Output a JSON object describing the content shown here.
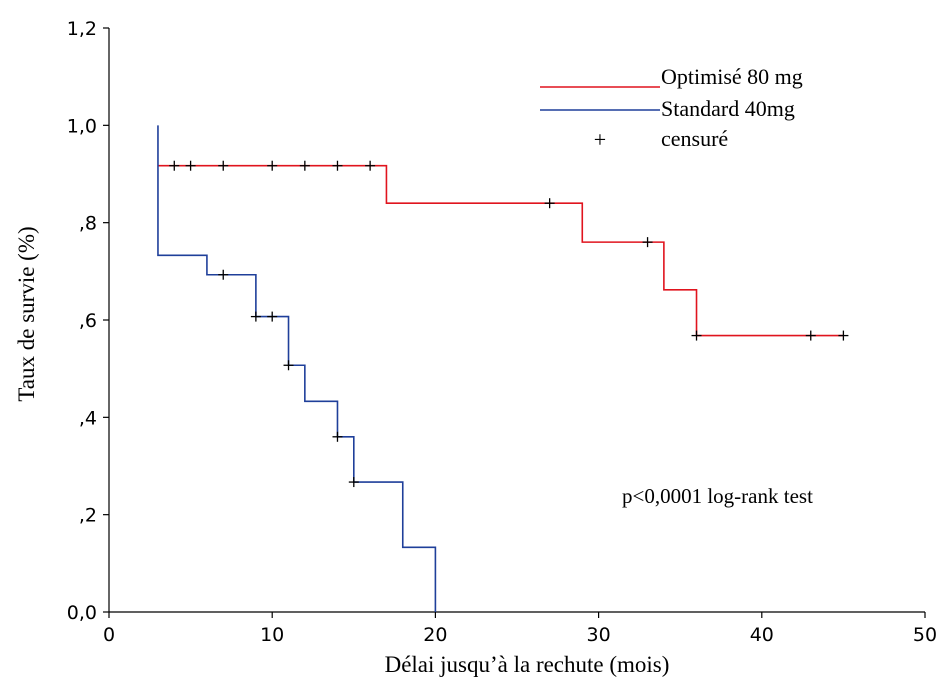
{
  "chart_data": {
    "type": "line",
    "subtype": "kaplan-meier-step",
    "xlabel": "Délai jusqu’à la rechute (mois)",
    "ylabel": "Taux de survie (%)",
    "xlim": [
      0,
      50
    ],
    "ylim": [
      0,
      1.2
    ],
    "x_ticks": [
      0,
      10,
      20,
      30,
      40,
      50
    ],
    "x_tick_labels": [
      "0",
      "10",
      "20",
      "30",
      "40",
      "50"
    ],
    "y_ticks": [
      0,
      0.2,
      0.4,
      0.6,
      0.8,
      1.0,
      1.2
    ],
    "y_tick_labels": [
      "0,0",
      ",2",
      ",4",
      ",6",
      ",8",
      "1,0",
      "1,2"
    ],
    "grid": false,
    "legend_position": "top-right",
    "series": [
      {
        "name": "Optimisé 80 mg",
        "color": "#e0141e",
        "x": [
          3,
          17,
          29,
          34,
          36,
          45
        ],
        "y": [
          0.917,
          0.84,
          0.76,
          0.662,
          0.568,
          0.568
        ],
        "censored": [
          {
            "x": 4,
            "y": 0.917
          },
          {
            "x": 5,
            "y": 0.917
          },
          {
            "x": 7,
            "y": 0.917
          },
          {
            "x": 10,
            "y": 0.917
          },
          {
            "x": 12,
            "y": 0.917
          },
          {
            "x": 14,
            "y": 0.917
          },
          {
            "x": 16,
            "y": 0.917
          },
          {
            "x": 27,
            "y": 0.84
          },
          {
            "x": 33,
            "y": 0.76
          },
          {
            "x": 36,
            "y": 0.568
          },
          {
            "x": 43,
            "y": 0.568
          },
          {
            "x": 45,
            "y": 0.568
          }
        ]
      },
      {
        "name": "Standard 40mg",
        "color": "#1f3f9a",
        "x": [
          3,
          3,
          6,
          9,
          11,
          12,
          14,
          15,
          18,
          20
        ],
        "y": [
          1.0,
          0.733,
          0.693,
          0.607,
          0.507,
          0.433,
          0.36,
          0.267,
          0.133,
          0
        ],
        "censored": [
          {
            "x": 7,
            "y": 0.693
          },
          {
            "x": 9,
            "y": 0.607
          },
          {
            "x": 10,
            "y": 0.607
          },
          {
            "x": 11,
            "y": 0.507
          },
          {
            "x": 14,
            "y": 0.36
          },
          {
            "x": 15,
            "y": 0.267
          }
        ]
      }
    ],
    "legend": {
      "entries": [
        "Optimisé 80 mg",
        "Standard 40mg"
      ],
      "censored_symbol": "+",
      "censored_label": "censuré"
    },
    "annotations": [
      "p<0,0001 log-rank test"
    ]
  }
}
